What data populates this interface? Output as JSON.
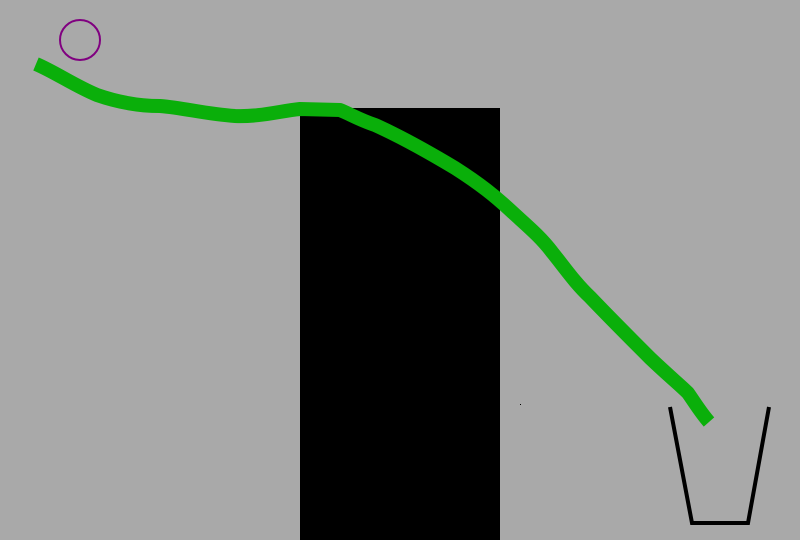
{
  "colors": {
    "background": "#a9a9a9",
    "wall": "#000000",
    "drawn_line": "#0aaf0a",
    "ball_outline": "#800080",
    "cup": "#000000"
  },
  "scene": {
    "ball": {
      "icon": "circle-outline-icon"
    },
    "drawn_line": {
      "icon": "freehand-stroke-icon"
    },
    "obstacle": {
      "icon": "rectangle-block-icon"
    },
    "goal_cup": {
      "icon": "cup-outline-icon"
    }
  }
}
